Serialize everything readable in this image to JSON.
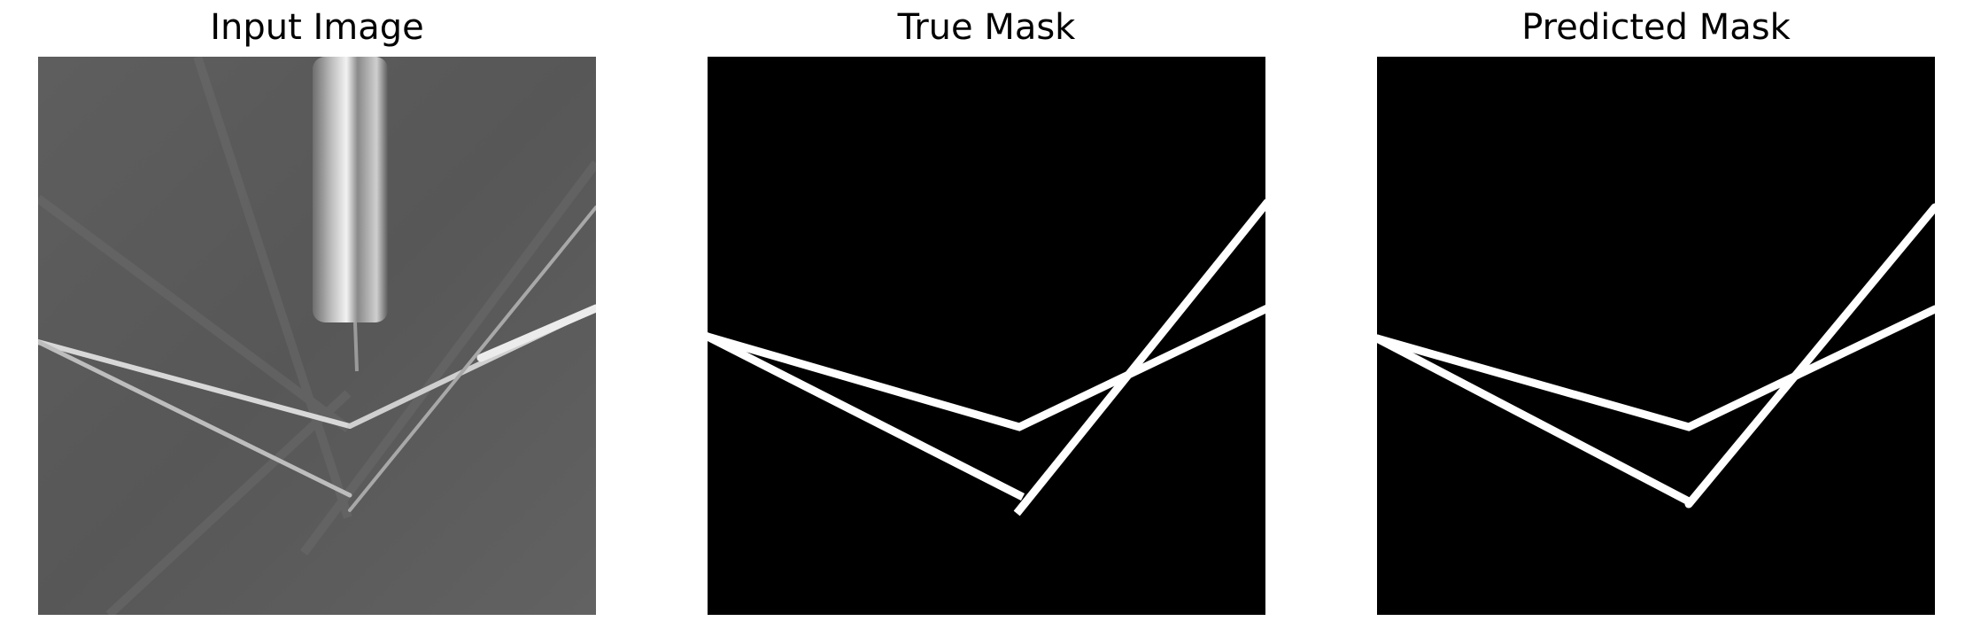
{
  "panels": [
    {
      "title": "Input Image",
      "kind": "grayscale-photo"
    },
    {
      "title": "True Mask",
      "kind": "binary-mask"
    },
    {
      "title": "Predicted Mask",
      "kind": "binary-mask"
    }
  ],
  "colors": {
    "background": "#ffffff",
    "mask_background": "#000000",
    "mask_foreground": "#ffffff",
    "photo_background": "#5a5a5a"
  }
}
